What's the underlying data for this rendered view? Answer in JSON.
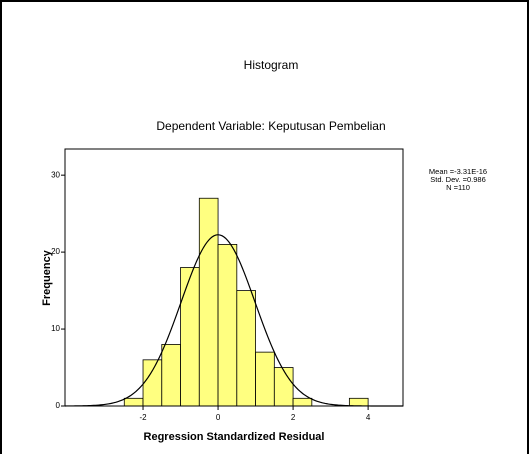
{
  "chart_data": {
    "type": "histogram",
    "title": "Histogram",
    "subtitle": "Dependent Variable: Keputusan Pembelian",
    "xlabel": "Regression Standardized Residual",
    "ylabel": "Frequency",
    "bins": [
      -2.5,
      -2,
      -1.5,
      -1,
      -0.5,
      0,
      0.5,
      1,
      1.5,
      2,
      2.5,
      3,
      3.5,
      4
    ],
    "values": [
      1,
      6,
      8,
      18,
      27,
      21,
      15,
      7,
      5,
      1,
      0,
      0,
      1
    ],
    "color": "#ffff80",
    "xlim": [
      -4.08,
      4.93
    ],
    "xticks": [
      -2,
      0,
      2,
      4
    ],
    "ylim": [
      0,
      33.4
    ],
    "yticks": [
      0,
      10,
      20,
      30
    ],
    "stats": {
      "mean": -3.31e-16,
      "std_dev": 0.986,
      "n": 110,
      "labels": [
        "Mean =-3.31E-16",
        "Std. Dev. =0.986",
        "N =110"
      ]
    }
  }
}
